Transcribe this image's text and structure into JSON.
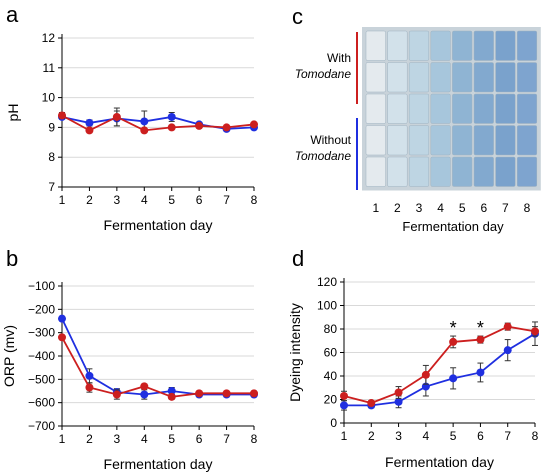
{
  "colors": {
    "red": "#cc1f1f",
    "blue": "#1f2fe0",
    "axis": "#000000",
    "grid": "#d9d9d9"
  },
  "panel_c": {
    "letter": "c",
    "group1_line1": "With",
    "group1_line2": "Tomodane",
    "group2_line1": "Without",
    "group2_line2": "Tomodane",
    "days": [
      "1",
      "2",
      "3",
      "4",
      "5",
      "6",
      "7",
      "8"
    ],
    "xlabel": "Fermentation day",
    "swatch_color_by_day": [
      "#e4eaee",
      "#d2e1ea",
      "#bed5e3",
      "#a7c6dc",
      "#8fb4d3",
      "#82a9cf",
      "#7aa2cc",
      "#7ea4cf"
    ]
  },
  "chart_data": [
    {
      "panel": "a",
      "type": "line",
      "letter": "a",
      "x": [
        1,
        2,
        3,
        4,
        5,
        6,
        7,
        8
      ],
      "xlabel": "Fermentation day",
      "ylabel": "pH",
      "xlim": [
        1,
        8
      ],
      "ylim": [
        7,
        12
      ],
      "yticks": [
        7,
        8,
        9,
        10,
        11,
        12
      ],
      "grid": true,
      "series": [
        {
          "color": "red",
          "values": [
            9.4,
            8.9,
            9.35,
            8.9,
            9.0,
            9.05,
            9.0,
            9.1
          ],
          "errors": [
            0.1,
            0.05,
            0.3,
            0.05,
            0.05,
            0.05,
            0.05,
            0.05
          ]
        },
        {
          "color": "blue",
          "values": [
            9.35,
            9.15,
            9.3,
            9.2,
            9.35,
            9.1,
            8.95,
            9.0
          ],
          "errors": [
            0.05,
            0.1,
            0.25,
            0.35,
            0.15,
            0.05,
            0.05,
            0.05
          ]
        }
      ]
    },
    {
      "panel": "b",
      "type": "line",
      "letter": "b",
      "x": [
        1,
        2,
        3,
        4,
        5,
        6,
        7,
        8
      ],
      "xlabel": "Fermentation day",
      "ylabel": "ORP (mv)",
      "xlim": [
        1,
        8
      ],
      "ylim": [
        -700,
        -100
      ],
      "yticks": [
        -700,
        -600,
        -500,
        -400,
        -300,
        -200,
        -100
      ],
      "grid": true,
      "series": [
        {
          "color": "red",
          "values": [
            -320,
            -535,
            -565,
            -530,
            -575,
            -560,
            -560,
            -560
          ],
          "errors": [
            10,
            20,
            20,
            10,
            10,
            10,
            10,
            10
          ]
        },
        {
          "color": "blue",
          "values": [
            -240,
            -485,
            -555,
            -565,
            -550,
            -565,
            -565,
            -565
          ],
          "errors": [
            10,
            30,
            15,
            20,
            15,
            10,
            10,
            10
          ]
        }
      ]
    },
    {
      "panel": "d",
      "type": "line",
      "letter": "d",
      "x": [
        1,
        2,
        3,
        4,
        5,
        6,
        7,
        8
      ],
      "xlabel": "Fermentation day",
      "ylabel": "Dyeing intensity",
      "xlim": [
        1,
        8
      ],
      "ylim": [
        0,
        120
      ],
      "yticks": [
        0,
        20,
        40,
        60,
        80,
        100,
        120
      ],
      "grid": true,
      "annotations": [
        {
          "x": 5,
          "text": "*"
        },
        {
          "x": 6,
          "text": "*"
        }
      ],
      "series": [
        {
          "color": "red",
          "values": [
            23,
            17,
            26,
            41,
            69,
            71,
            82,
            78
          ],
          "errors": [
            4,
            2,
            5,
            8,
            5,
            3,
            3,
            4
          ]
        },
        {
          "color": "blue",
          "values": [
            15,
            15,
            18,
            31,
            38,
            43,
            62,
            76
          ],
          "errors": [
            4,
            2,
            5,
            8,
            9,
            8,
            9,
            10
          ]
        }
      ]
    }
  ]
}
